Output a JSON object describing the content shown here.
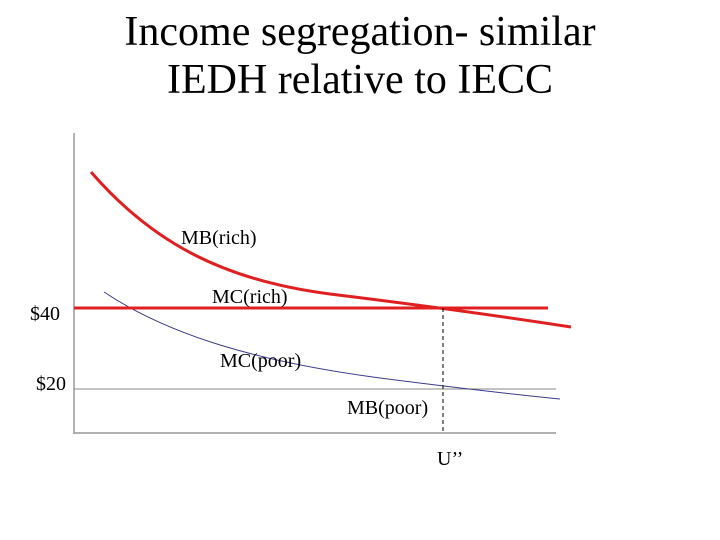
{
  "title": {
    "line1": "Income segregation- similar",
    "line2": "IEDH relative to IECC"
  },
  "diagram": {
    "price_labels": {
      "high": "$40",
      "low": "$20"
    },
    "curve_labels": {
      "mb_rich": "MB(rich)",
      "mc_rich": "MC(rich)",
      "mc_poor": "MC(poor)",
      "mb_poor": "MB(poor)"
    },
    "quantity_label": "U’’",
    "colors": {
      "rich": "#e02020",
      "poor": "#3a3a8c",
      "axis": "#000000",
      "grid": "#888888"
    }
  }
}
